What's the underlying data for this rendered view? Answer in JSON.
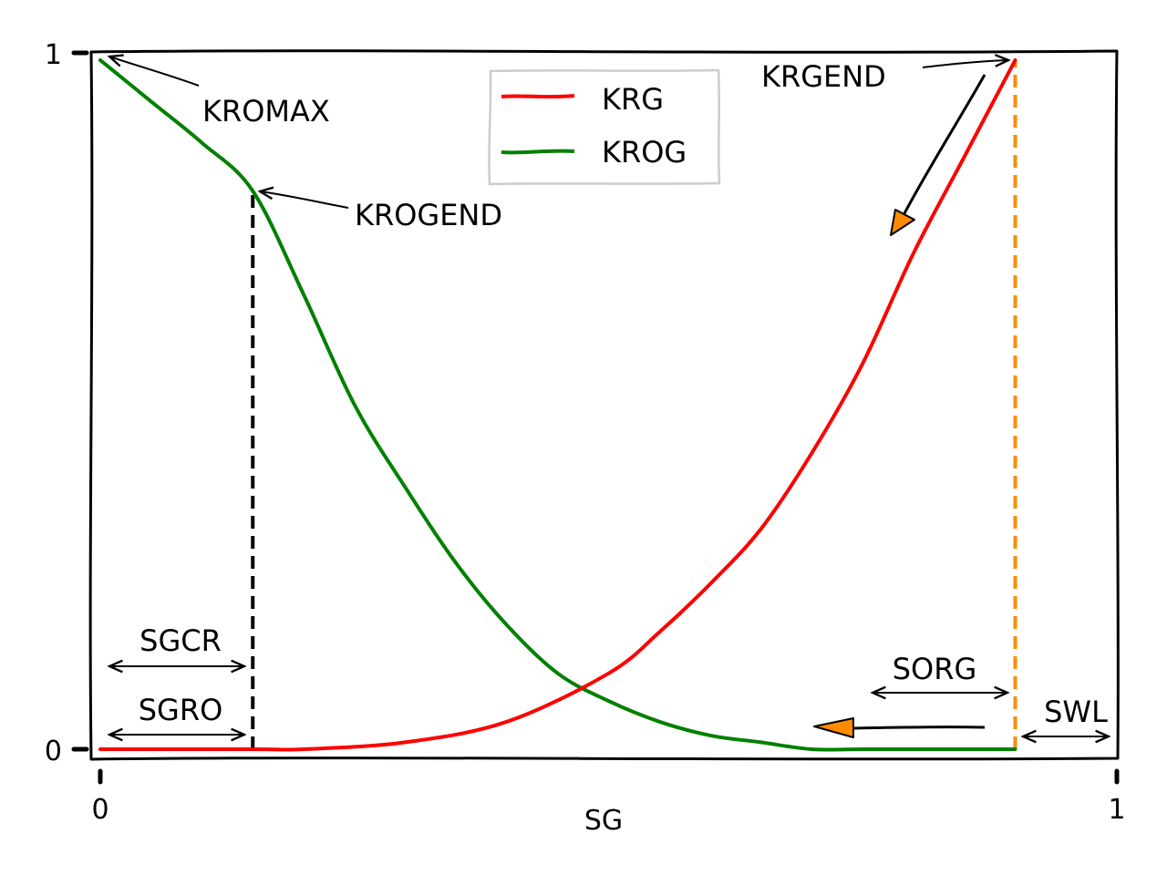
{
  "chart_data": {
    "type": "line",
    "title": "",
    "xlabel": "SG",
    "ylabel": "",
    "xlim": [
      0,
      1
    ],
    "ylim": [
      0,
      1
    ],
    "xticks": [
      "0",
      "1"
    ],
    "yticks": [
      "0",
      "1"
    ],
    "grid": false,
    "legend_position": "top-center",
    "series": [
      {
        "name": "KRG",
        "color": "#ff0000",
        "x": [
          0.0,
          0.15,
          0.2,
          0.3,
          0.4,
          0.5,
          0.55,
          0.6,
          0.65,
          0.7,
          0.75,
          0.8,
          0.85,
          0.9
        ],
        "y": [
          0.0,
          0.0,
          0.0,
          0.01,
          0.04,
          0.11,
          0.17,
          0.24,
          0.32,
          0.43,
          0.56,
          0.72,
          0.86,
          1.0
        ]
      },
      {
        "name": "KROG",
        "color": "#008000",
        "x": [
          0.0,
          0.05,
          0.1,
          0.15,
          0.2,
          0.25,
          0.3,
          0.35,
          0.4,
          0.45,
          0.5,
          0.55,
          0.6,
          0.65,
          0.7,
          0.75,
          0.8,
          0.85,
          0.9
        ],
        "y": [
          1.0,
          0.94,
          0.88,
          0.81,
          0.66,
          0.5,
          0.38,
          0.27,
          0.18,
          0.11,
          0.07,
          0.04,
          0.02,
          0.01,
          0.0,
          0.0,
          0.0,
          0.0,
          0.0
        ]
      }
    ],
    "vlines": [
      {
        "name": "sgcr-line",
        "x": 0.15,
        "y": [
          0,
          0.81
        ],
        "color": "#000000",
        "dashed": true
      },
      {
        "name": "sg-end-line",
        "x": 0.9,
        "y": [
          0,
          1.0
        ],
        "color": "#ff8c00",
        "dashed": true
      }
    ],
    "annotations": [
      {
        "text": "KROMAX",
        "target": [
          0.0,
          1.0
        ]
      },
      {
        "text": "KROGEND",
        "target": [
          0.15,
          0.81
        ]
      },
      {
        "text": "KRGEND",
        "target": [
          0.9,
          1.0
        ]
      },
      {
        "text": "SGCR",
        "span": [
          0.0,
          0.15
        ]
      },
      {
        "text": "SGRO",
        "span": [
          0.0,
          0.15
        ]
      },
      {
        "text": "SORG",
        "span": [
          0.76,
          0.9
        ]
      },
      {
        "text": "SWL",
        "span": [
          0.9,
          1.0
        ]
      }
    ],
    "direction_arrows": [
      {
        "color": "#ff8c00",
        "direction": "down-left"
      },
      {
        "color": "#ff8c00",
        "direction": "left"
      }
    ]
  }
}
